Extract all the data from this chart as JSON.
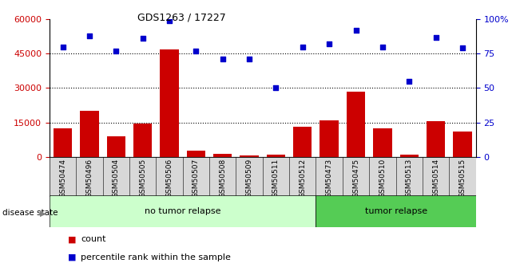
{
  "title": "GDS1263 / 17227",
  "samples": [
    "GSM50474",
    "GSM50496",
    "GSM50504",
    "GSM50505",
    "GSM50506",
    "GSM50507",
    "GSM50508",
    "GSM50509",
    "GSM50511",
    "GSM50512",
    "GSM50473",
    "GSM50475",
    "GSM50510",
    "GSM50513",
    "GSM50514",
    "GSM50515"
  ],
  "counts": [
    12500,
    20000,
    9000,
    14500,
    47000,
    2500,
    1200,
    500,
    1000,
    13000,
    16000,
    28500,
    12500,
    1000,
    15500,
    11000
  ],
  "percentiles": [
    80,
    88,
    77,
    86,
    99,
    77,
    71,
    71,
    50,
    80,
    82,
    92,
    80,
    55,
    87,
    79
  ],
  "disease_state": [
    "no tumor relapse",
    "no tumor relapse",
    "no tumor relapse",
    "no tumor relapse",
    "no tumor relapse",
    "no tumor relapse",
    "no tumor relapse",
    "no tumor relapse",
    "no tumor relapse",
    "no tumor relapse",
    "tumor relapse",
    "tumor relapse",
    "tumor relapse",
    "tumor relapse",
    "tumor relapse",
    "tumor relapse"
  ],
  "bar_color": "#cc0000",
  "dot_color": "#0000cc",
  "ylim_left": [
    0,
    60000
  ],
  "ylim_right": [
    0,
    100
  ],
  "yticks_left": [
    0,
    15000,
    30000,
    45000,
    60000
  ],
  "ytick_labels_left": [
    "0",
    "15000",
    "30000",
    "45000",
    "60000"
  ],
  "yticks_right": [
    0,
    25,
    50,
    75,
    100
  ],
  "ytick_labels_right": [
    "0",
    "25",
    "50",
    "75",
    "100%"
  ],
  "grid_yticks": [
    15000,
    30000,
    45000
  ],
  "no_relapse_color": "#ccffcc",
  "relapse_color": "#55cc55",
  "tick_bg_color": "#d8d8d8",
  "bar_width": 0.7,
  "no_relapse_count": 10,
  "relapse_count": 6
}
